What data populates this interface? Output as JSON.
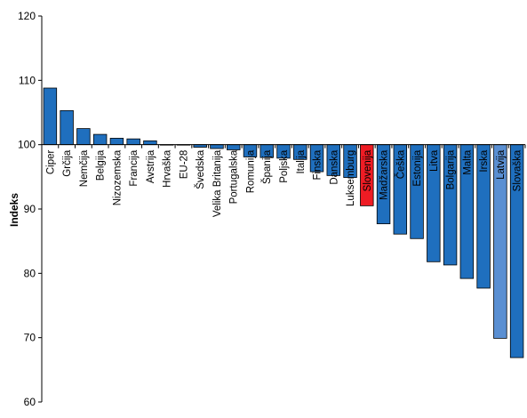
{
  "chart_data": {
    "type": "bar",
    "ylabel": "Indeks",
    "ylim": [
      60,
      120
    ],
    "yticks": [
      60,
      70,
      80,
      90,
      100,
      110,
      120
    ],
    "baseline": 100,
    "grid": false,
    "categories": [
      "Ciper",
      "Grčija",
      "Nemčija",
      "Belgija",
      "Nizozemska",
      "Francija",
      "Avstrija",
      "Hrvaška",
      "EU-28",
      "Švedska",
      "Velika Britanija",
      "Portugalska",
      "Romunija",
      "Španija",
      "Poljska",
      "Italija",
      "Finska",
      "Danska",
      "Luksemburg",
      "Slovenija",
      "Madžarska",
      "Češka",
      "Estonija",
      "Litva",
      "Bolgarija",
      "Malta",
      "Irska",
      "Latvija",
      "Slovaška"
    ],
    "values": [
      108.8,
      105.3,
      102.5,
      101.6,
      101.0,
      100.9,
      100.6,
      100.0,
      100.0,
      99.6,
      99.4,
      99.2,
      98.1,
      98.0,
      97.9,
      97.7,
      95.8,
      95.2,
      94.9,
      90.5,
      87.7,
      86.1,
      85.4,
      81.8,
      81.3,
      79.2,
      77.7,
      69.9,
      66.9
    ],
    "colors": {
      "default": "#1f6fbe",
      "highlight": "#ee1c24",
      "light": "#5a8fd2",
      "edge": "#000000"
    },
    "bar_styles": [
      "default",
      "default",
      "default",
      "default",
      "default",
      "default",
      "default",
      "default",
      "default",
      "default",
      "default",
      "default",
      "default",
      "default",
      "default",
      "default",
      "default",
      "default",
      "default",
      "highlight",
      "default",
      "default",
      "default",
      "default",
      "default",
      "default",
      "default",
      "light",
      "default"
    ]
  }
}
